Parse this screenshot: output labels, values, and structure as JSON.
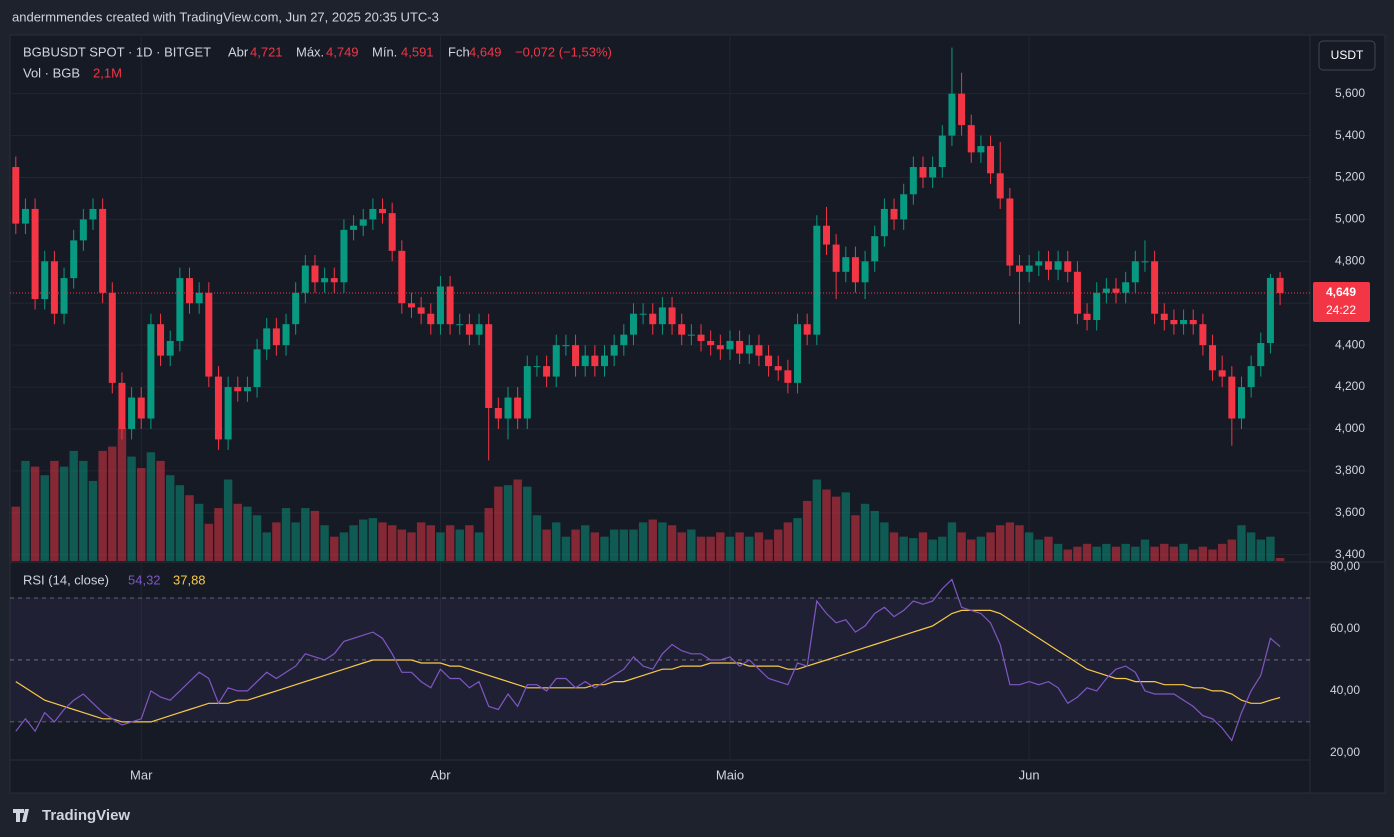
{
  "header": "andermmendes created with TradingView.com, Jun 27, 2025 20:35 UTC-3",
  "footer": "TradingView",
  "currency_button": "USDT",
  "badge": {
    "price": "4,649",
    "countdown": "24:22"
  },
  "chart_data": {
    "type": "candlestick",
    "legend": {
      "symbol": "BGBUSDT SPOT · 1D · BITGET",
      "open_label": "Abr",
      "open": "4,721",
      "high_label": "Máx.",
      "high": "4,749",
      "low_label": "Mín.",
      "low": "4,591",
      "close_label": "Fch",
      "close": "4,649",
      "change": "−0,072 (−1,53%)",
      "volume_label": "Vol · BGB",
      "volume": "2,1M",
      "rsi_label": "RSI (14, close)",
      "rsi": "54,32",
      "rsi_ma": "37,88"
    },
    "open": [
      5.25,
      4.98,
      5.05,
      4.62,
      4.8,
      4.55,
      4.72,
      4.9,
      5.0,
      5.05,
      4.65,
      4.22,
      4.0,
      4.15,
      4.05,
      4.5,
      4.35,
      4.42,
      4.72,
      4.6,
      4.65,
      4.25,
      3.95,
      4.2,
      4.18,
      4.2,
      4.38,
      4.48,
      4.4,
      4.5,
      4.65,
      4.78,
      4.7,
      4.72,
      4.7,
      4.95,
      4.97,
      5.0,
      5.05,
      5.03,
      4.85,
      4.6,
      4.58,
      4.55,
      4.5,
      4.68,
      4.5,
      4.5,
      4.45,
      4.5,
      4.1,
      4.05,
      4.15,
      4.05,
      4.3,
      4.3,
      4.25,
      4.4,
      4.4,
      4.3,
      4.35,
      4.3,
      4.35,
      4.4,
      4.45,
      4.55,
      4.55,
      4.5,
      4.58,
      4.5,
      4.45,
      4.45,
      4.42,
      4.4,
      4.38,
      4.42,
      4.36,
      4.4,
      4.35,
      4.3,
      4.28,
      4.22,
      4.5,
      4.45,
      4.97,
      4.88,
      4.75,
      4.82,
      4.7,
      4.8,
      4.92,
      5.05,
      5.0,
      5.12,
      5.25,
      5.2,
      5.25,
      5.4,
      5.6,
      5.45,
      5.32,
      5.35,
      5.22,
      5.1,
      4.78,
      4.75,
      4.78,
      4.8,
      4.76,
      4.8,
      4.75,
      4.55,
      4.52,
      4.65,
      4.67,
      4.65,
      4.7,
      4.8,
      4.8,
      4.55,
      4.52,
      4.5,
      4.52,
      4.5,
      4.4,
      4.28,
      4.25,
      4.05,
      4.2,
      4.3,
      4.41,
      4.721
    ],
    "high": [
      5.3,
      5.1,
      5.1,
      4.85,
      4.85,
      4.77,
      4.95,
      5.05,
      5.1,
      5.1,
      4.7,
      4.27,
      4.2,
      4.2,
      4.55,
      4.55,
      4.47,
      4.77,
      4.77,
      4.7,
      4.7,
      4.3,
      4.25,
      4.25,
      4.25,
      4.43,
      4.53,
      4.53,
      4.55,
      4.7,
      4.83,
      4.83,
      4.77,
      4.77,
      5.0,
      5.02,
      5.05,
      5.1,
      5.1,
      5.08,
      4.9,
      4.65,
      4.63,
      4.6,
      4.73,
      4.73,
      4.55,
      4.55,
      4.55,
      4.55,
      4.15,
      4.2,
      4.2,
      4.35,
      4.35,
      4.35,
      4.45,
      4.45,
      4.45,
      4.4,
      4.4,
      4.4,
      4.45,
      4.5,
      4.6,
      4.6,
      4.6,
      4.63,
      4.63,
      4.55,
      4.5,
      4.5,
      4.47,
      4.45,
      4.47,
      4.47,
      4.45,
      4.45,
      4.4,
      4.35,
      4.33,
      4.55,
      4.55,
      5.02,
      5.06,
      4.93,
      4.87,
      4.87,
      4.85,
      4.97,
      5.1,
      5.1,
      5.17,
      5.3,
      5.3,
      5.3,
      5.45,
      5.82,
      5.7,
      5.5,
      5.4,
      5.4,
      5.37,
      5.15,
      4.83,
      4.83,
      4.85,
      4.85,
      4.85,
      4.85,
      4.8,
      4.6,
      4.7,
      4.72,
      4.72,
      4.75,
      4.85,
      4.9,
      4.85,
      4.6,
      4.57,
      4.57,
      4.57,
      4.55,
      4.45,
      4.35,
      4.3,
      4.25,
      4.35,
      4.46,
      4.74,
      4.749
    ],
    "low": [
      4.93,
      4.93,
      4.57,
      4.57,
      4.5,
      4.5,
      4.67,
      4.85,
      4.95,
      4.6,
      4.17,
      3.95,
      3.95,
      4.0,
      4.0,
      4.3,
      4.3,
      4.37,
      4.55,
      4.55,
      4.2,
      3.9,
      3.9,
      4.13,
      4.13,
      4.15,
      4.33,
      4.35,
      4.35,
      4.45,
      4.6,
      4.65,
      4.65,
      4.65,
      4.65,
      4.9,
      4.92,
      4.95,
      4.98,
      4.8,
      4.55,
      4.53,
      4.5,
      4.45,
      4.45,
      4.45,
      4.45,
      4.4,
      4.4,
      3.85,
      4.0,
      3.95,
      4.0,
      4.0,
      4.25,
      4.2,
      4.2,
      4.35,
      4.25,
      4.25,
      4.25,
      4.25,
      4.3,
      4.35,
      4.4,
      4.5,
      4.45,
      4.45,
      4.45,
      4.4,
      4.4,
      4.37,
      4.35,
      4.33,
      4.33,
      4.31,
      4.31,
      4.3,
      4.25,
      4.23,
      4.17,
      4.17,
      4.4,
      4.4,
      4.83,
      4.62,
      4.7,
      4.65,
      4.62,
      4.75,
      4.87,
      4.95,
      4.95,
      5.07,
      5.15,
      5.15,
      5.2,
      5.35,
      5.4,
      5.27,
      5.27,
      5.17,
      5.05,
      4.73,
      4.5,
      4.7,
      4.73,
      4.71,
      4.71,
      4.7,
      4.5,
      4.47,
      4.47,
      4.6,
      4.6,
      4.6,
      4.65,
      4.75,
      4.5,
      4.47,
      4.45,
      4.45,
      4.45,
      4.35,
      4.23,
      4.2,
      3.92,
      4.0,
      4.15,
      4.25,
      4.36,
      4.591
    ],
    "close": [
      4.98,
      5.05,
      4.62,
      4.8,
      4.55,
      4.72,
      4.9,
      5.0,
      5.05,
      4.65,
      4.22,
      4.0,
      4.15,
      4.05,
      4.5,
      4.35,
      4.42,
      4.72,
      4.6,
      4.65,
      4.25,
      3.95,
      4.2,
      4.18,
      4.2,
      4.38,
      4.48,
      4.4,
      4.5,
      4.65,
      4.78,
      4.7,
      4.72,
      4.7,
      4.95,
      4.97,
      5.0,
      5.05,
      5.03,
      4.85,
      4.6,
      4.58,
      4.55,
      4.5,
      4.68,
      4.5,
      4.5,
      4.45,
      4.5,
      4.1,
      4.05,
      4.15,
      4.05,
      4.3,
      4.3,
      4.25,
      4.4,
      4.4,
      4.3,
      4.35,
      4.3,
      4.35,
      4.4,
      4.45,
      4.55,
      4.55,
      4.5,
      4.58,
      4.5,
      4.45,
      4.45,
      4.42,
      4.4,
      4.38,
      4.42,
      4.36,
      4.4,
      4.35,
      4.3,
      4.28,
      4.22,
      4.5,
      4.45,
      4.97,
      4.88,
      4.75,
      4.82,
      4.7,
      4.8,
      4.92,
      5.05,
      5.0,
      5.12,
      5.25,
      5.2,
      5.25,
      5.4,
      5.6,
      5.45,
      5.32,
      5.35,
      5.22,
      5.1,
      4.78,
      4.75,
      4.78,
      4.8,
      4.76,
      4.8,
      4.75,
      4.55,
      4.52,
      4.65,
      4.67,
      4.65,
      4.7,
      4.8,
      4.8,
      4.55,
      4.52,
      4.5,
      4.52,
      4.5,
      4.4,
      4.28,
      4.25,
      4.05,
      4.2,
      4.3,
      4.41,
      4.721,
      4.649
    ],
    "volume": [
      38,
      70,
      66,
      60,
      70,
      66,
      77,
      70,
      56,
      77,
      80,
      93,
      73,
      65,
      76,
      70,
      60,
      53,
      46,
      40,
      26,
      37,
      57,
      40,
      38,
      32,
      20,
      27,
      37,
      27,
      37,
      35,
      25,
      17,
      20,
      25,
      29,
      30,
      27,
      25,
      22,
      20,
      27,
      25,
      20,
      25,
      22,
      25,
      20,
      37,
      52,
      53,
      57,
      52,
      32,
      22,
      27,
      17,
      22,
      25,
      20,
      17,
      22,
      22,
      22,
      27,
      29,
      27,
      25,
      20,
      22,
      17,
      17,
      20,
      17,
      20,
      17,
      20,
      15,
      22,
      27,
      30,
      42,
      57,
      50,
      45,
      48,
      32,
      40,
      35,
      27,
      20,
      17,
      16,
      20,
      15,
      17,
      27,
      20,
      15,
      17,
      20,
      25,
      27,
      25,
      20,
      15,
      17,
      12,
      8,
      10,
      12,
      10,
      12,
      10,
      12,
      10,
      15,
      10,
      12,
      10,
      12,
      8,
      10,
      8,
      12,
      15,
      25,
      20,
      15,
      17,
      2.1
    ],
    "rsi": {
      "color": "#7e57c2",
      "values": [
        27,
        31,
        27,
        33,
        30,
        34,
        37,
        39,
        36,
        33,
        31,
        29,
        30,
        31,
        40,
        38,
        37,
        40,
        43,
        46,
        44,
        36,
        41,
        40,
        40,
        43,
        46,
        44,
        46,
        48,
        52,
        51,
        50,
        52,
        56,
        57,
        58,
        59,
        57,
        52,
        46,
        46,
        43,
        41,
        47,
        44,
        44,
        41,
        43,
        35,
        34,
        39,
        35,
        42,
        42,
        40,
        44,
        44,
        41,
        43,
        41,
        43,
        45,
        47,
        51,
        48,
        47,
        52,
        55,
        53,
        52,
        52,
        50,
        50,
        51,
        48,
        50,
        47,
        44,
        43,
        42,
        49,
        48,
        69,
        65,
        62,
        63,
        59,
        61,
        65,
        67,
        64,
        66,
        69,
        68,
        69,
        73,
        76,
        67,
        66,
        65,
        62,
        55,
        42,
        42,
        43,
        42,
        43,
        41,
        36,
        38,
        41,
        40,
        44,
        47,
        48,
        46,
        40,
        39,
        39,
        39,
        37,
        35,
        32,
        31,
        28,
        24,
        33,
        40,
        45,
        57,
        54.32
      ]
    },
    "rsi_ma": {
      "color": "#f7c948",
      "values": [
        43,
        41,
        39,
        37,
        36,
        35,
        34,
        33,
        32,
        31,
        31,
        30,
        30,
        30,
        30,
        31,
        32,
        33,
        34,
        35,
        36,
        36,
        36,
        37,
        37,
        38,
        39,
        40,
        41,
        42,
        43,
        44,
        45,
        46,
        47,
        48,
        49,
        50,
        50,
        50,
        50,
        50,
        49,
        49,
        49,
        48,
        48,
        47,
        46,
        45,
        44,
        43,
        42,
        41,
        41,
        41,
        41,
        41,
        41,
        41,
        42,
        42,
        43,
        43,
        44,
        45,
        46,
        47,
        47,
        48,
        48,
        48,
        49,
        49,
        49,
        49,
        48,
        48,
        48,
        48,
        47,
        47,
        48,
        49,
        50,
        51,
        52,
        53,
        54,
        55,
        56,
        57,
        58,
        59,
        60,
        61,
        63,
        65,
        66,
        66,
        66,
        66,
        65,
        63,
        61,
        59,
        57,
        55,
        53,
        51,
        49,
        47,
        46,
        45,
        44,
        44,
        43,
        43,
        43,
        42,
        42,
        42,
        41,
        41,
        40,
        40,
        39,
        37,
        36,
        36,
        37,
        37.88
      ]
    },
    "up_color": "#089981",
    "down_color": "#f23645",
    "xlim": [
      -0.6,
      134.1
    ],
    "xticks": [
      {
        "value": 13,
        "label": "Mar"
      },
      {
        "value": 44,
        "label": "Abr"
      },
      {
        "value": 74,
        "label": "Maio"
      },
      {
        "value": 105,
        "label": "Jun"
      }
    ],
    "ylim": [
      3.37,
      5.88
    ],
    "yticks": [
      {
        "value": 3.4,
        "label": "3,400"
      },
      {
        "value": 3.6,
        "label": "3,600"
      },
      {
        "value": 3.8,
        "label": "3,800"
      },
      {
        "value": 4.0,
        "label": "4,000"
      },
      {
        "value": 4.2,
        "label": "4,200"
      },
      {
        "value": 4.4,
        "label": "4,400"
      },
      {
        "value": 4.6,
        "label": "4,600"
      },
      {
        "value": 4.8,
        "label": "4,800"
      },
      {
        "value": 5.0,
        "label": "5,000"
      },
      {
        "value": 5.2,
        "label": "5,200"
      },
      {
        "value": 5.4,
        "label": "5,400"
      },
      {
        "value": 5.6,
        "label": "5,600"
      }
    ],
    "rsi_ylim": [
      17.7,
      81.3
    ],
    "rsi_ticks": [
      {
        "value": 20,
        "label": "20,00"
      },
      {
        "value": 40,
        "label": "40,00"
      },
      {
        "value": 60,
        "label": "60,00"
      },
      {
        "value": 80,
        "label": "80,00"
      }
    ],
    "rsi_levels": [
      70,
      50,
      30
    ],
    "grid": true
  }
}
